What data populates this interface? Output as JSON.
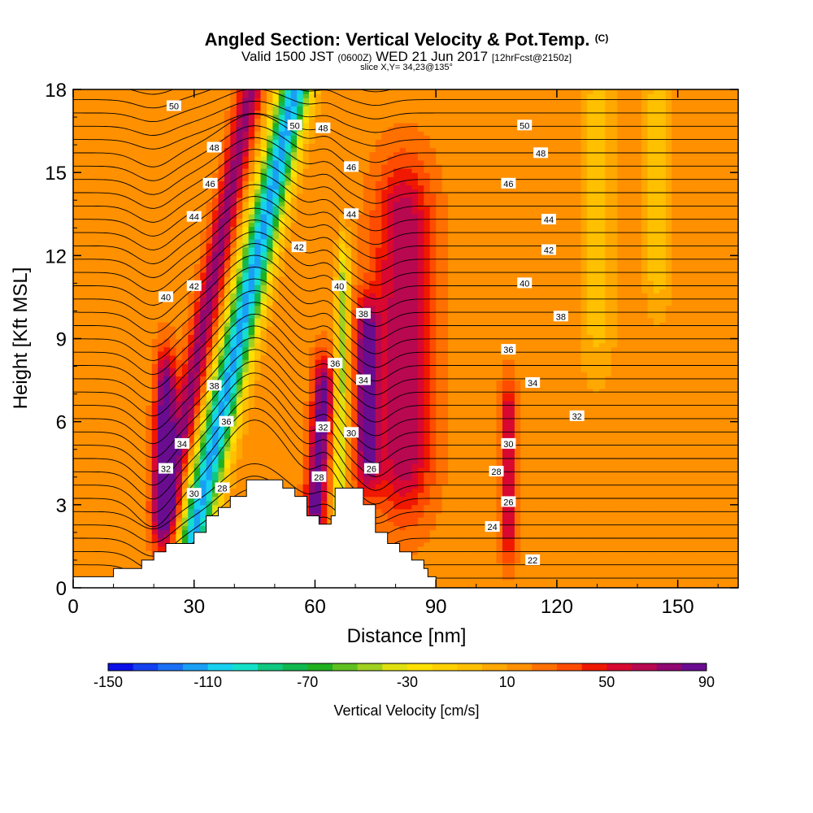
{
  "title": {
    "main": "Angled Section: Vertical Velocity & Pot.Temp.",
    "main_tag": "(C)",
    "valid_pre": "Valid 1500 JST",
    "valid_utc": "(0600Z)",
    "valid_date": "WED 21 Jun 2017",
    "forecast": "[12hrFcst@2150z]",
    "slice": "slice X,Y= 34,23@135°"
  },
  "chart_data": {
    "type": "heatmap",
    "xlabel": "Distance [nm]",
    "ylabel": "Height [Kft MSL]",
    "xlim": [
      0,
      165
    ],
    "ylim": [
      0,
      18
    ],
    "xticks": [
      0,
      30,
      60,
      90,
      120,
      150
    ],
    "yticks": [
      0,
      3,
      6,
      9,
      12,
      15,
      18
    ],
    "grid": false,
    "colorbar": {
      "label": "Vertical Velocity [cm/s]",
      "min": -150,
      "max": 90,
      "step": 10,
      "tick_labels": [
        "-150",
        "-110",
        "-70",
        "-30",
        "10",
        "50",
        "90"
      ],
      "colors": [
        "#0a10e6",
        "#1440f0",
        "#1a70f5",
        "#19a0f5",
        "#16d0f0",
        "#14e0c8",
        "#10c880",
        "#10b850",
        "#20b020",
        "#60c020",
        "#a0d020",
        "#e0e010",
        "#ffe000",
        "#ffd000",
        "#ffc000",
        "#ffa800",
        "#ff9000",
        "#ff7000",
        "#ff4c00",
        "#f01800",
        "#d80830",
        "#b80850",
        "#900870",
        "#6a0c90"
      ]
    },
    "terrain_nm_kft": [
      [
        0,
        0.4
      ],
      [
        10,
        0.4
      ],
      [
        10,
        0.7
      ],
      [
        17,
        0.7
      ],
      [
        17,
        1.0
      ],
      [
        20,
        1.0
      ],
      [
        20,
        1.3
      ],
      [
        23,
        1.3
      ],
      [
        23,
        1.6
      ],
      [
        30,
        1.6
      ],
      [
        30,
        2.0
      ],
      [
        33,
        2.0
      ],
      [
        33,
        2.6
      ],
      [
        36,
        2.6
      ],
      [
        36,
        2.9
      ],
      [
        39,
        2.9
      ],
      [
        39,
        3.3
      ],
      [
        43,
        3.3
      ],
      [
        43,
        3.9
      ],
      [
        52,
        3.9
      ],
      [
        52,
        3.6
      ],
      [
        55,
        3.6
      ],
      [
        55,
        3.3
      ],
      [
        58,
        3.3
      ],
      [
        58,
        2.6
      ],
      [
        61,
        2.6
      ],
      [
        61,
        2.3
      ],
      [
        64,
        2.3
      ],
      [
        64,
        2.6
      ],
      [
        65,
        2.6
      ],
      [
        65,
        3.6
      ],
      [
        72,
        3.6
      ],
      [
        72,
        3.0
      ],
      [
        75,
        3.0
      ],
      [
        75,
        2.0
      ],
      [
        78,
        2.0
      ],
      [
        78,
        1.6
      ],
      [
        81,
        1.6
      ],
      [
        81,
        1.3
      ],
      [
        84,
        1.3
      ],
      [
        84,
        1.0
      ],
      [
        87,
        1.0
      ],
      [
        87,
        0.7
      ],
      [
        88,
        0.7
      ],
      [
        88,
        0.4
      ],
      [
        90,
        0.4
      ],
      [
        90,
        0
      ],
      [
        0,
        0
      ]
    ],
    "theta_labels": [
      {
        "text": "50",
        "x": 25,
        "y": 17.4
      },
      {
        "text": "48",
        "x": 35,
        "y": 15.9
      },
      {
        "text": "46",
        "x": 34,
        "y": 14.6
      },
      {
        "text": "44",
        "x": 30,
        "y": 13.4
      },
      {
        "text": "42",
        "x": 30,
        "y": 10.9
      },
      {
        "text": "40",
        "x": 23,
        "y": 10.5
      },
      {
        "text": "38",
        "x": 35,
        "y": 7.3
      },
      {
        "text": "36",
        "x": 38,
        "y": 6.0
      },
      {
        "text": "34",
        "x": 27,
        "y": 5.2
      },
      {
        "text": "32",
        "x": 23,
        "y": 4.3
      },
      {
        "text": "30",
        "x": 30,
        "y": 3.4
      },
      {
        "text": "28",
        "x": 37,
        "y": 3.6
      },
      {
        "text": "50",
        "x": 55,
        "y": 16.7
      },
      {
        "text": "48",
        "x": 62,
        "y": 16.6
      },
      {
        "text": "46",
        "x": 69,
        "y": 15.2
      },
      {
        "text": "44",
        "x": 69,
        "y": 13.5
      },
      {
        "text": "42",
        "x": 56,
        "y": 12.3
      },
      {
        "text": "40",
        "x": 66,
        "y": 10.9
      },
      {
        "text": "38",
        "x": 72,
        "y": 9.9
      },
      {
        "text": "36",
        "x": 65,
        "y": 8.1
      },
      {
        "text": "34",
        "x": 72,
        "y": 7.5
      },
      {
        "text": "32",
        "x": 62,
        "y": 5.8
      },
      {
        "text": "30",
        "x": 69,
        "y": 5.6
      },
      {
        "text": "28",
        "x": 61,
        "y": 4.0
      },
      {
        "text": "26",
        "x": 74,
        "y": 4.3
      },
      {
        "text": "50",
        "x": 112,
        "y": 16.7
      },
      {
        "text": "48",
        "x": 116,
        "y": 15.7
      },
      {
        "text": "46",
        "x": 108,
        "y": 14.6
      },
      {
        "text": "44",
        "x": 118,
        "y": 13.3
      },
      {
        "text": "42",
        "x": 118,
        "y": 12.2
      },
      {
        "text": "40",
        "x": 112,
        "y": 11.0
      },
      {
        "text": "38",
        "x": 121,
        "y": 9.8
      },
      {
        "text": "36",
        "x": 108,
        "y": 8.6
      },
      {
        "text": "34",
        "x": 114,
        "y": 7.4
      },
      {
        "text": "32",
        "x": 125,
        "y": 6.2
      },
      {
        "text": "30",
        "x": 108,
        "y": 5.2
      },
      {
        "text": "28",
        "x": 105,
        "y": 4.2
      },
      {
        "text": "26",
        "x": 108,
        "y": 3.1
      },
      {
        "text": "24",
        "x": 104,
        "y": 2.2
      },
      {
        "text": "22",
        "x": 114,
        "y": 1.0
      }
    ],
    "w_features": [
      {
        "x": [
          30,
          55
        ],
        "y": [
          2,
          18
        ],
        "w": -130,
        "sx": 4,
        "sy": 3.5
      },
      {
        "x": [
          25,
          44
        ],
        "y": [
          4,
          18
        ],
        "w": 60,
        "sx": 3,
        "sy": 2.5
      },
      {
        "x": [
          22,
          23
        ],
        "y": [
          3,
          7
        ],
        "w": 80,
        "sx": 2.5,
        "sy": 1.6
      },
      {
        "x": [
          60,
          62
        ],
        "y": [
          3,
          7
        ],
        "w": 75,
        "sx": 2.5,
        "sy": 1.4
      },
      {
        "x": [
          66,
          67
        ],
        "y": [
          3,
          11
        ],
        "w": -60,
        "sx": 1.5,
        "sy": 1.6
      },
      {
        "x": [
          82,
          82
        ],
        "y": [
          5,
          13
        ],
        "w": 55,
        "sx": 7,
        "sy": 2.5
      },
      {
        "x": [
          73,
          73
        ],
        "y": [
          5,
          9
        ],
        "w": 70,
        "sx": 3,
        "sy": 1.5
      },
      {
        "x": [
          108,
          108
        ],
        "y": [
          2.5,
          6
        ],
        "w": 50,
        "sx": 2,
        "sy": 1.5
      },
      {
        "x": [
          130,
          130
        ],
        "y": [
          10,
          17
        ],
        "w": -20,
        "sx": 4,
        "sy": 2.5
      },
      {
        "x": [
          145,
          145
        ],
        "y": [
          12,
          17
        ],
        "w": -25,
        "sx": 3,
        "sy": 2
      }
    ]
  }
}
